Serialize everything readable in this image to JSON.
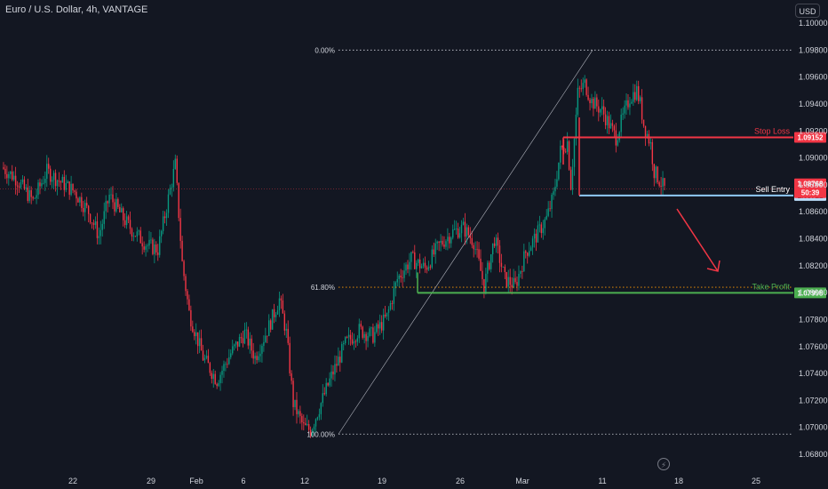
{
  "header": {
    "symbol": "Euro / U.S. Dollar, 4h, VANTAGE",
    "currency": "USD"
  },
  "icons": {
    "bolt": "lightning-icon"
  },
  "chart_data": {
    "type": "candlestick",
    "title": "Euro / U.S. Dollar, 4h, VANTAGE",
    "ylim": [
      1.068,
      1.1
    ],
    "yticks": [
      "1.10000",
      "1.09800",
      "1.09600",
      "1.09400",
      "1.09200",
      "1.09000",
      "1.08800",
      "1.08600",
      "1.08400",
      "1.08200",
      "1.08000",
      "1.07800",
      "1.07600",
      "1.07400",
      "1.07200",
      "1.07000",
      "1.06800"
    ],
    "xticks": [
      "22",
      "29",
      "Feb",
      "6",
      "12",
      "19",
      "26",
      "Mar",
      "11",
      "18",
      "25"
    ],
    "current_price": {
      "value": "1.08768",
      "countdown": "50:39"
    },
    "fibonacci": [
      {
        "label": "0.00%",
        "price": 1.098
      },
      {
        "label": "61.80%",
        "price": 1.0804
      },
      {
        "label": "100.00%",
        "price": 1.0695
      }
    ],
    "levels": [
      {
        "name": "Stop Loss",
        "price": 1.09152,
        "tag": "1.09152",
        "color": "#f23645"
      },
      {
        "name": "Sell Entry",
        "price": 1.08721,
        "tag": "1.08721",
        "color": "#d1d4dc"
      },
      {
        "name": "Take Profit",
        "price": 1.07998,
        "tag": "1.07998",
        "color": "#4caf50"
      }
    ],
    "trend_line": {
      "from_price": 1.0695,
      "to_price": 1.098
    },
    "arrow_direction": "down",
    "colors": {
      "up": "#089981",
      "down": "#f23645",
      "background": "#131722"
    }
  }
}
